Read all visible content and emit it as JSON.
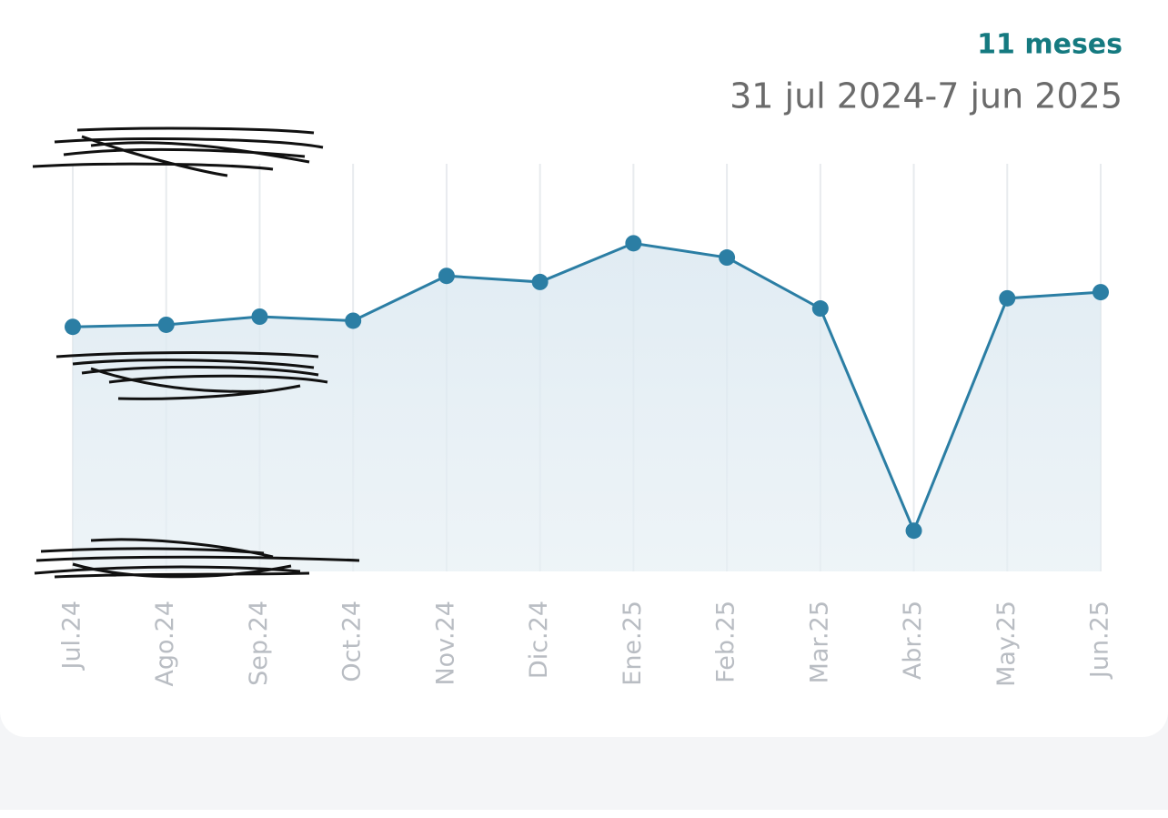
{
  "chart_data": {
    "type": "line",
    "title": "11 meses",
    "subtitle": "31 jul 2024-7 jun 2025",
    "categories": [
      "Jul.24",
      "Ago.24",
      "Sep.24",
      "Oct.24",
      "Nov.24",
      "Dic.24",
      "Ene.25",
      "Feb.25",
      "Mar.25",
      "Abr.25",
      "May.25",
      "Jun.25"
    ],
    "series": [
      {
        "color": "#2b7ea4",
        "values": [
          1200,
          1210,
          1250,
          1230,
          1450,
          1420,
          1610,
          1540,
          1290,
          200,
          1340,
          1370
        ]
      }
    ],
    "ylim": [
      0,
      2000
    ],
    "grid": true,
    "area": true
  }
}
